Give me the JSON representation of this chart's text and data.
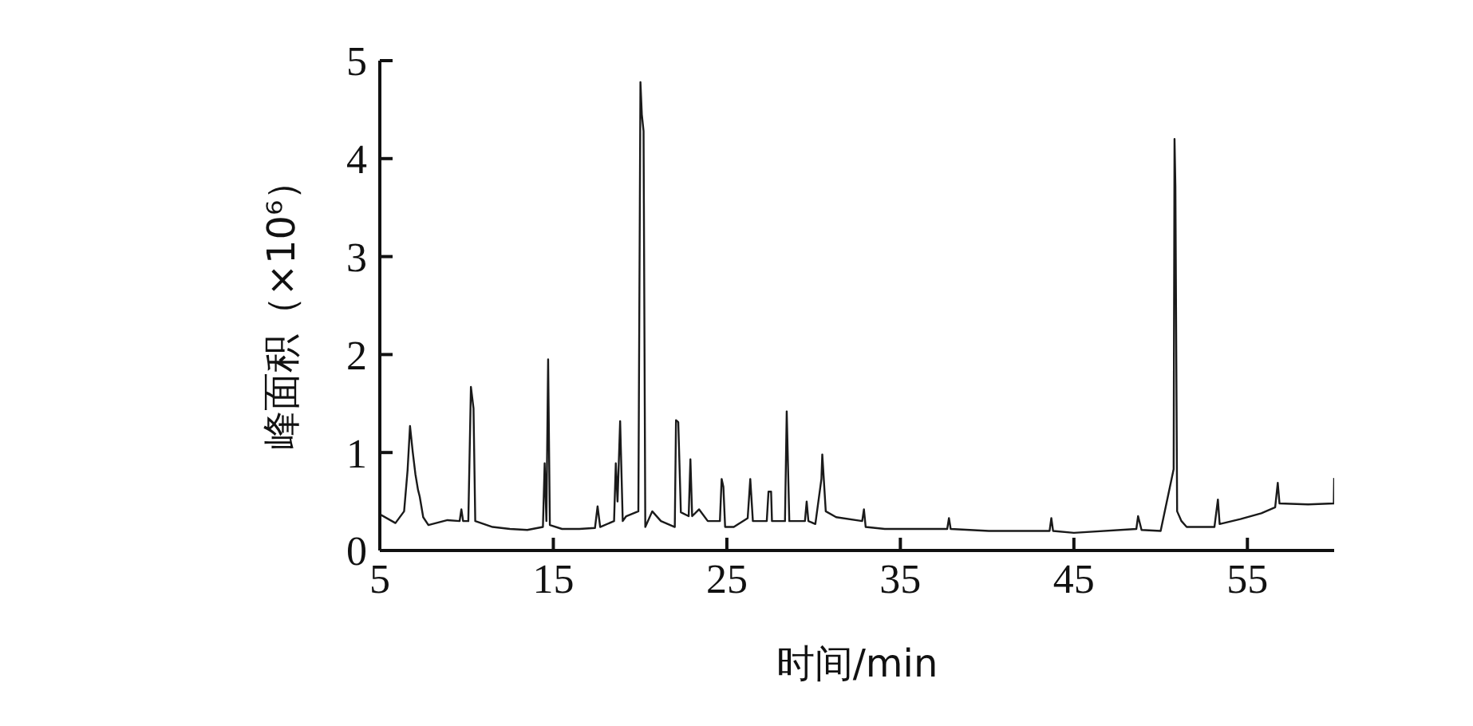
{
  "chart_data": {
    "type": "line",
    "xlabel": "时间/min",
    "ylabel": "峰面积（×10⁶）",
    "color": "#1a1a1a",
    "marker": "none",
    "grid": false,
    "x": [
      5,
      5.9,
      6.4,
      6.6,
      6.74,
      6.9,
      7.05,
      7.2,
      7.3,
      7.5,
      7.8,
      8.9,
      9.6,
      9.7,
      9.8,
      10.1,
      10.25,
      10.4,
      10.5,
      11.5,
      12.5,
      13.5,
      14.4,
      14.5,
      14.6,
      14.7,
      14.8,
      15.5,
      16.5,
      17.4,
      17.55,
      17.7,
      18.5,
      18.6,
      18.7,
      18.85,
      19.0,
      19.2,
      19.9,
      20.02,
      20.1,
      20.2,
      20.3,
      20.7,
      21.2,
      22.0,
      22.07,
      22.2,
      22.35,
      22.8,
      22.9,
      23.0,
      23.4,
      23.9,
      24.6,
      24.7,
      24.8,
      24.9,
      25.4,
      26.2,
      26.35,
      26.5,
      27.3,
      27.4,
      27.55,
      27.6,
      28.35,
      28.45,
      28.6,
      29.5,
      29.6,
      29.7,
      30.1,
      30.45,
      30.5,
      30.7,
      31.3,
      32.8,
      32.9,
      33.0,
      34.1,
      36,
      37.7,
      37.8,
      37.9,
      40.1,
      43.6,
      43.7,
      43.8,
      45,
      48.6,
      48.7,
      48.9,
      50.0,
      50.75,
      50.8,
      50.85,
      50.95,
      51.2,
      51.5,
      53.1,
      53.3,
      53.4,
      54.6,
      55.8,
      56.6,
      56.75,
      56.85,
      58.5,
      59.98,
      60
    ],
    "values": [
      0.37,
      0.28,
      0.4,
      0.82,
      1.27,
      1.0,
      0.78,
      0.62,
      0.55,
      0.34,
      0.26,
      0.31,
      0.3,
      0.42,
      0.3,
      0.3,
      1.67,
      1.45,
      0.3,
      0.24,
      0.22,
      0.21,
      0.24,
      0.89,
      0.3,
      1.95,
      0.26,
      0.22,
      0.22,
      0.23,
      0.45,
      0.24,
      0.3,
      0.89,
      0.5,
      1.32,
      0.3,
      0.35,
      0.4,
      4.78,
      4.45,
      4.28,
      0.24,
      0.4,
      0.3,
      0.24,
      1.33,
      1.31,
      0.39,
      0.35,
      0.93,
      0.35,
      0.42,
      0.3,
      0.3,
      0.73,
      0.65,
      0.24,
      0.24,
      0.33,
      0.73,
      0.3,
      0.3,
      0.6,
      0.6,
      0.3,
      0.3,
      1.42,
      0.3,
      0.3,
      0.5,
      0.3,
      0.27,
      0.73,
      0.98,
      0.4,
      0.34,
      0.3,
      0.42,
      0.24,
      0.22,
      0.22,
      0.22,
      0.33,
      0.22,
      0.2,
      0.2,
      0.33,
      0.2,
      0.18,
      0.22,
      0.35,
      0.21,
      0.2,
      0.83,
      4.2,
      3.72,
      0.4,
      0.3,
      0.24,
      0.24,
      0.52,
      0.27,
      0.32,
      0.38,
      0.44,
      0.69,
      0.48,
      0.47,
      0.48,
      0.74
    ],
    "xlim": [
      5,
      60
    ],
    "xticks": [
      5,
      15,
      25,
      35,
      45,
      55
    ],
    "ylim": [
      0,
      5
    ],
    "yticks": [
      0,
      1,
      2,
      3,
      4,
      5
    ]
  }
}
